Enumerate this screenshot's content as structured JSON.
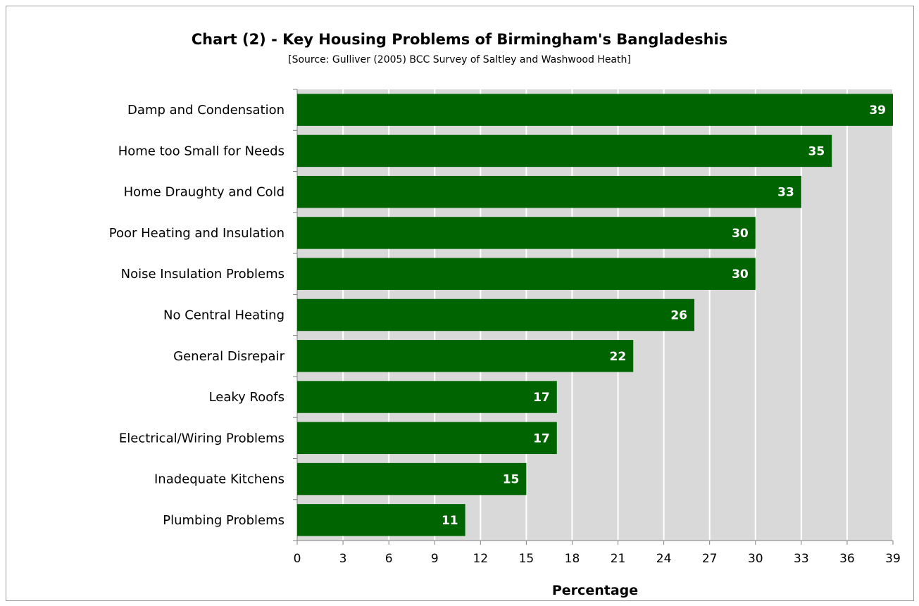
{
  "chart_data": {
    "type": "bar",
    "orientation": "horizontal",
    "title": "Chart (2) - Key Housing Problems of Birmingham's Bangladeshis",
    "subtitle": "[Source: Gulliver (2005) BCC Survey of Saltley and Washwood Heath]",
    "xlabel": "Percentage",
    "ylabel": "",
    "categories": [
      "Damp and Condensation",
      "Home too Small for Needs",
      "Home Draughty and Cold",
      "Poor Heating and Insulation",
      "Noise Insulation Problems",
      "No Central Heating",
      "General Disrepair",
      "Leaky Roofs",
      "Electrical/Wiring Problems",
      "Inadequate Kitchens",
      "Plumbing Problems"
    ],
    "values": [
      39,
      35,
      33,
      30,
      30,
      26,
      22,
      17,
      17,
      15,
      11
    ],
    "xlim": [
      0,
      39
    ],
    "xticks": [
      "0",
      "3",
      "6",
      "9",
      "12",
      "15",
      "18",
      "21",
      "24",
      "27",
      "30",
      "33",
      "36",
      "39"
    ],
    "grid": true,
    "colors": {
      "bar": "#006400",
      "plot_bg": "#d9d9d9",
      "grid": "#ffffff",
      "data_label": "#ffffff"
    }
  }
}
